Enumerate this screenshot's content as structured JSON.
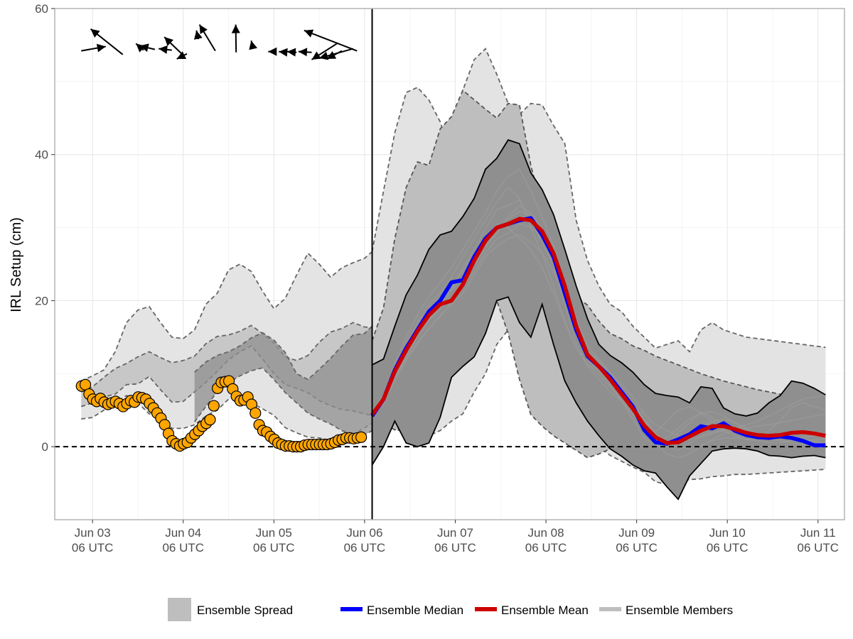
{
  "chart_data": {
    "type": "line",
    "title": "",
    "xlabel": "",
    "ylabel": "IRL Setup (cm)",
    "ylim": [
      -10,
      60
    ],
    "xlim": [
      "Jun 02 20 UTC",
      "Jun 11 11 UTC"
    ],
    "y_ticks": [
      "0",
      "20",
      "40",
      "60"
    ],
    "y_tick_values": [
      0,
      20,
      40,
      60
    ],
    "x_ticks": [
      {
        "line1": "Jun 03",
        "line2": "06 UTC"
      },
      {
        "line1": "Jun 04",
        "line2": "06 UTC"
      },
      {
        "line1": "Jun 05",
        "line2": "06 UTC"
      },
      {
        "line1": "Jun 06",
        "line2": "06 UTC"
      },
      {
        "line1": "Jun 07",
        "line2": "06 UTC"
      },
      {
        "line1": "Jun 08",
        "line2": "06 UTC"
      },
      {
        "line1": "Jun 09",
        "line2": "06 UTC"
      },
      {
        "line1": "Jun 10",
        "line2": "06 UTC"
      },
      {
        "line1": "Jun 11",
        "line2": "06 UTC"
      }
    ],
    "x_tick_hours": [
      6,
      30,
      54,
      78,
      102,
      126,
      150,
      174,
      198
    ],
    "x_unit": "hours after Jun 03 00 UTC",
    "grid": true,
    "forecast_start_hour": 80,
    "zero_reference_line": 0,
    "colors": {
      "observed_fill": "#FFA500",
      "median": "#0000FF",
      "mean": "#CC0000",
      "members": "#999999",
      "spread_outer": "#E3E3E3",
      "spread_mid": "#BEBEBE",
      "spread_inner": "#8F8F8F"
    },
    "legend": {
      "position": "bottom",
      "spread_label": "Ensemble Spread",
      "median_label": "Ensemble Median",
      "mean_label": "Ensemble Mean",
      "members_label": "Ensemble Members"
    },
    "past_spread_bands": [
      {
        "x": [
          3,
          6,
          9,
          12,
          15,
          18,
          21,
          24,
          27,
          30,
          33,
          36,
          39,
          42,
          45,
          48,
          51,
          54,
          57,
          60,
          63,
          66,
          69,
          72,
          75,
          78,
          80
        ],
        "lower": [
          3.8,
          4,
          5,
          6,
          7,
          6,
          4.5,
          4,
          2.5,
          2.5,
          3,
          4.2,
          5,
          6.5,
          7,
          6,
          5.2,
          4.3,
          2.6,
          1.9,
          1.3,
          1.2,
          0.9,
          1.1,
          1.7,
          2.6,
          3.2
        ],
        "upper": [
          9,
          9.7,
          10.5,
          13,
          17,
          18.7,
          19.2,
          17,
          15,
          14.8,
          16,
          19.5,
          21,
          24.2,
          25,
          24,
          21.3,
          18.9,
          20.3,
          23.5,
          26.5,
          25,
          23.2,
          24.5,
          25.2,
          25.8,
          26.7
        ],
        "level": "outer"
      },
      {
        "x": [
          3,
          6,
          9,
          12,
          15,
          18,
          21,
          24,
          27,
          30,
          33,
          36,
          39,
          42,
          45,
          48,
          51,
          54,
          57,
          60,
          63,
          66,
          69,
          72,
          75,
          78,
          80
        ],
        "lower": [
          5.5,
          6,
          6.8,
          7.2,
          8.5,
          8.6,
          9.6,
          7.8,
          6.1,
          6.2,
          7.5,
          8.8,
          10.3,
          11.9,
          13,
          13.8,
          12,
          10,
          8.5,
          8,
          7.4,
          6.3,
          5.6,
          5.1,
          4.9,
          4.5,
          4.3
        ],
        "upper": [
          7.5,
          8.2,
          9.5,
          10.7,
          11.4,
          12.3,
          13,
          12.2,
          11.5,
          11.8,
          12.4,
          14.1,
          15.1,
          15.3,
          15.8,
          16.6,
          15.5,
          14.2,
          12.3,
          11.8,
          12.5,
          14.3,
          15.7,
          16.2,
          17,
          16.4,
          16.3
        ],
        "level": "mid"
      },
      {
        "x": [
          33,
          36,
          39,
          42,
          45,
          48,
          51,
          54,
          57,
          60,
          63,
          66,
          69,
          72,
          75,
          78,
          80
        ],
        "lower": [
          3.4,
          5.5,
          7.5,
          8.8,
          9.7,
          10.4,
          10.8,
          9.2,
          7.4,
          6,
          4.6,
          3.8,
          3.1,
          2.2,
          1.7,
          1.6,
          2.2
        ],
        "upper": [
          10.2,
          11.6,
          12.5,
          13,
          13.8,
          14.9,
          15.6,
          14.6,
          12.9,
          10,
          9.2,
          10.6,
          12.1,
          13.8,
          15.3,
          15.5,
          16.5
        ],
        "level": "inner"
      }
    ],
    "observed": {
      "x": [
        3.1,
        4.1,
        5.1,
        6.1,
        7.1,
        8.1,
        9.1,
        10.1,
        11.1,
        12.1,
        13.1,
        14.1,
        15.1,
        16.1,
        17.1,
        18.1,
        19.1,
        20.1,
        21.1,
        22.1,
        23.1,
        24.1,
        25.1,
        26.1,
        27.1,
        28.1,
        29.1,
        30.1,
        31.1,
        32.1,
        33.1,
        34.1,
        35.1,
        36.1,
        37.1,
        38.1,
        39.1,
        40.1,
        41.1,
        42.1,
        43.1,
        44.1,
        45.1,
        46.1,
        47.1,
        48.1,
        49.1,
        50.1,
        51.1,
        52.1,
        53.1,
        54.1,
        55.1,
        56.1,
        57.1,
        58.1,
        59.1,
        60.1,
        61.1,
        62.1,
        63.1,
        64.1,
        65.1,
        66.1,
        67.1,
        68.1,
        69.1,
        70.1,
        71.1,
        72.1,
        73.1,
        74.1,
        75.1,
        76.1,
        77.1
      ],
      "y": [
        8.3,
        8.5,
        7.2,
        6.5,
        6.2,
        6.6,
        6.1,
        5.8,
        6.0,
        6.2,
        5.9,
        5.5,
        5.9,
        6.3,
        6.1,
        6.8,
        6.7,
        6.5,
        5.9,
        5.3,
        4.6,
        3.9,
        3.0,
        1.8,
        0.8,
        0.4,
        0.1,
        0.4,
        0.6,
        1.2,
        1.7,
        2.2,
        2.8,
        3.2,
        3.7,
        5.6,
        8.0,
        8.8,
        8.9,
        9.0,
        7.9,
        6.9,
        6.3,
        6.4,
        6.8,
        5.8,
        4.6,
        3.0,
        2.2,
        2.0,
        1.4,
        1.0,
        0.5,
        0.3,
        0.1,
        0.1,
        0.0,
        0.0,
        0.0,
        0.2,
        0.3,
        0.3,
        0.3,
        0.3,
        0.3,
        0.3,
        0.4,
        0.6,
        0.9,
        1.0,
        1.2,
        1.2,
        1.1,
        1.2,
        1.3
      ]
    },
    "wind_arrows": [
      {
        "x": 3,
        "y": 54.2,
        "to_x": 9.5,
        "to_y": 54.8
      },
      {
        "x": 14,
        "y": 53.7,
        "to_x": 5.5,
        "to_y": 57.2
      },
      {
        "x": 19.5,
        "y": 54.3,
        "to_x": 17.5,
        "to_y": 55.2
      },
      {
        "x": 22.5,
        "y": 54.4,
        "to_x": 18.5,
        "to_y": 54.9
      },
      {
        "x": 27,
        "y": 54.3,
        "to_x": 23.5,
        "to_y": 54.5
      },
      {
        "x": 30,
        "y": 53.6,
        "to_x": 25,
        "to_y": 56.1
      },
      {
        "x": 31,
        "y": 53.8,
        "to_x": 28.3,
        "to_y": 53.1
      },
      {
        "x": 34,
        "y": 55.8,
        "to_x": 33.5,
        "to_y": 57.0
      },
      {
        "x": 38.5,
        "y": 54.2,
        "to_x": 34.3,
        "to_y": 57.8
      },
      {
        "x": 44,
        "y": 54.0,
        "to_x": 43.9,
        "to_y": 57.8
      },
      {
        "x": 48.5,
        "y": 54.5,
        "to_x": 48,
        "to_y": 55.6
      },
      {
        "x": 54.5,
        "y": 54.1,
        "to_x": 52.5,
        "to_y": 54.1
      },
      {
        "x": 57.5,
        "y": 54.0,
        "to_x": 55.3,
        "to_y": 54.1
      },
      {
        "x": 60,
        "y": 54.0,
        "to_x": 57.5,
        "to_y": 54.1
      },
      {
        "x": 64,
        "y": 54.0,
        "to_x": 60.5,
        "to_y": 54.1
      },
      {
        "x": 72,
        "y": 54.2,
        "to_x": 68,
        "to_y": 53.1
      },
      {
        "x": 75,
        "y": 54.5,
        "to_x": 66,
        "to_y": 53.2
      },
      {
        "x": 71,
        "y": 55.3,
        "to_x": 64,
        "to_y": 53.0
      },
      {
        "x": 76,
        "y": 54.2,
        "to_x": 62,
        "to_y": 57.0
      }
    ],
    "forecast": {
      "x": [
        80,
        83,
        86,
        89,
        92,
        95,
        98,
        101,
        104,
        107,
        110,
        113,
        116,
        119,
        122,
        125,
        128,
        131,
        134,
        137,
        140,
        143,
        146,
        149,
        152,
        155,
        158,
        161,
        164,
        167,
        170,
        173,
        176,
        179,
        182,
        185,
        188,
        191,
        194,
        197,
        200
      ],
      "outer_band": {
        "lower": [
          4,
          3.5,
          2.5,
          1.8,
          1.3,
          1.5,
          2.2,
          3.5,
          4.5,
          7.5,
          10,
          14,
          16,
          19,
          17.5,
          13,
          8,
          5,
          3.2,
          1.5,
          0,
          -1.2,
          -2,
          -2.8,
          -3.5,
          -4.8,
          -5.2,
          -4.8,
          -4.5,
          -4.4,
          -4.1,
          -4,
          -3.8,
          -3.8,
          -3.7,
          -3.6,
          -3.5,
          -3.4,
          -3.3,
          -3.2,
          -3.1
        ],
        "upper": [
          26.7,
          35,
          43,
          48.5,
          49.2,
          47.5,
          44.5,
          40,
          48.8,
          53,
          54.5,
          51,
          47,
          45.5,
          47,
          46.8,
          44,
          41.5,
          31,
          25.5,
          22,
          19.5,
          18.5,
          16.5,
          15,
          13.5,
          14,
          14.5,
          13,
          16,
          17,
          16,
          15.5,
          15,
          14.8,
          14.6,
          14.4,
          14.2,
          14,
          13.8,
          13.6
        ]
      },
      "mid_band": {
        "lower": [
          3.3,
          3.2,
          2.3,
          2.8,
          3.6,
          7,
          10,
          12.5,
          13.8,
          17,
          24,
          20,
          15.5,
          9.2,
          4.4,
          2.8,
          1.5,
          0.5,
          -0.5,
          -1.5,
          -1,
          -0.3,
          0,
          0.2,
          0.4,
          0.6,
          0.8,
          0.9,
          1,
          1.1,
          1.2,
          1.3,
          1.4,
          1.5,
          1.6,
          1.7,
          1.8,
          1.9,
          2,
          2.1,
          2.2
        ],
        "upper": [
          14.5,
          19,
          28.5,
          35.5,
          39,
          38.5,
          43.5,
          45.2,
          48.8,
          47.5,
          46.2,
          45,
          47,
          46.8,
          38.5,
          32.5,
          25.8,
          24.5,
          20.5,
          19.4,
          17.2,
          15.5,
          14.8,
          13.8,
          13.2,
          12.4,
          11.8,
          11.2,
          10.6,
          10,
          9.5,
          9,
          8.6,
          8.2,
          7.8,
          7.5,
          7.2,
          7,
          6.8,
          6.6,
          6.4
        ]
      },
      "inner_band": {
        "lower": [
          -2.5,
          0,
          3.5,
          0.5,
          0,
          0.5,
          4,
          9.5,
          11,
          12.3,
          15.5,
          20,
          20.5,
          17,
          15,
          19.5,
          14,
          9,
          6,
          3.5,
          1.5,
          -0.3,
          -1.3,
          -2.5,
          -3.3,
          -3.6,
          -5.5,
          -7.2,
          -4,
          -2.3,
          -0.6,
          -0.3,
          -0.2,
          -0.3,
          -0.6,
          -1.2,
          -1.3,
          -1.5,
          -1.3,
          -1.2,
          -1.5
        ],
        "upper": [
          11.2,
          12,
          16.5,
          20.8,
          23.5,
          27,
          29,
          29.5,
          31.5,
          34,
          38,
          39.5,
          42,
          41.5,
          37.5,
          35.2,
          31.8,
          27,
          22,
          17.5,
          14,
          12.5,
          11.5,
          10.2,
          8.5,
          7.3,
          7,
          6.8,
          6,
          8.2,
          8,
          5.3,
          4.5,
          4.2,
          4.6,
          6,
          7,
          9,
          8.7,
          8,
          7.1
        ]
      },
      "median": [
        4.2,
        6.5,
        10.5,
        13.5,
        16,
        18.5,
        20,
        22.5,
        22.8,
        26,
        28.5,
        30,
        30.5,
        31,
        31.3,
        29,
        26,
        21,
        16,
        12.4,
        11,
        9.5,
        7.5,
        5.5,
        2.3,
        0.6,
        0.4,
        1,
        1.7,
        2.8,
        2.5,
        3.2,
        2.2,
        1.6,
        1.3,
        1.2,
        1.4,
        1.2,
        0.8,
        0.2,
        0.2
      ],
      "mean": [
        4.4,
        6.5,
        10.3,
        13.2,
        15.8,
        18,
        19.5,
        20,
        22.2,
        25.5,
        28.2,
        30,
        30.5,
        31.2,
        31,
        29.5,
        26.5,
        22,
        16.5,
        12.6,
        11,
        9.2,
        7.2,
        5.2,
        2.9,
        1.3,
        0.5,
        0.6,
        1.4,
        2.2,
        2.8,
        2.8,
        2.4,
        1.9,
        1.6,
        1.5,
        1.6,
        1.9,
        2,
        1.8,
        1.5
      ],
      "members": [
        [
          4,
          6,
          9.8,
          12.5,
          15.2,
          17.5,
          19,
          21.5,
          24.5,
          27,
          29.8,
          32.5,
          33,
          33.8,
          31,
          28,
          24.8,
          19.5,
          14.2,
          11,
          9.2,
          7.5,
          6.2,
          4.5,
          2.8,
          2,
          3.5,
          5,
          5.5,
          4.6,
          3.5,
          2.2,
          1.5,
          1,
          1.2,
          2.2,
          3.5,
          5.4,
          6,
          5.5,
          5
        ],
        [
          4.5,
          7,
          11,
          14.2,
          17,
          19.5,
          21,
          23.2,
          26,
          28.5,
          31,
          33.5,
          35.5,
          34,
          30,
          26.5,
          22,
          17.2,
          13.5,
          11.2,
          10.5,
          8.5,
          6.2,
          3.8,
          1.2,
          0.2,
          0,
          2,
          3.2,
          4.8,
          4,
          3,
          2.5,
          2,
          1.8,
          1.6,
          1.5,
          1.3,
          1,
          0.8,
          0.5
        ],
        [
          4.2,
          6,
          9.5,
          12,
          14.3,
          16.2,
          18,
          19.5,
          21,
          23.5,
          26,
          27.5,
          28.5,
          29,
          28,
          26.5,
          24,
          20.5,
          16.5,
          13.2,
          11.5,
          10,
          8,
          6,
          3.5,
          1.5,
          0,
          -0.5,
          0.5,
          1.5,
          2,
          2.3,
          2.5,
          2.2,
          1.8,
          1.6,
          1.5,
          1.2,
          1,
          0.6,
          0.3
        ],
        [
          3.8,
          6.5,
          10.8,
          14,
          16.5,
          19,
          20.5,
          22,
          24,
          26.5,
          28.8,
          30.5,
          30,
          28.5,
          27,
          24.5,
          21,
          17,
          13.5,
          11.3,
          9.8,
          8.2,
          6.5,
          4.5,
          2.2,
          0.5,
          -1,
          -1.5,
          -1,
          0,
          1,
          1.8,
          2.3,
          2.5,
          2.8,
          3,
          3.3,
          3.6,
          3.9,
          4.2,
          4.5
        ],
        [
          4.6,
          7.2,
          11.5,
          15,
          18,
          20.5,
          22.5,
          24.5,
          27,
          29.5,
          32,
          35,
          37,
          38,
          35,
          31.5,
          27.5,
          22.5,
          17.5,
          13.8,
          12,
          10.2,
          8.5,
          6.8,
          4.5,
          3,
          2.2,
          1.5,
          1,
          1.3,
          1.8,
          2.2,
          2.5,
          3,
          3.5,
          4.2,
          5,
          5.8,
          6.5,
          6.8,
          7
        ],
        [
          4.1,
          5.8,
          9,
          11.8,
          14,
          16.2,
          17.8,
          19.8,
          22,
          24,
          26.5,
          28.5,
          29.2,
          30.5,
          30,
          28.8,
          26,
          21,
          15.8,
          12,
          10.3,
          8.8,
          7,
          5,
          3,
          1.2,
          0.3,
          0.8,
          1.8,
          2.8,
          3.4,
          3.8,
          3.4,
          2.5,
          1.8,
          1.2,
          0.8,
          0.5,
          0.3,
          0.1,
          0
        ],
        [
          4.3,
          6.8,
          10.3,
          13.8,
          16.2,
          18.8,
          20.2,
          21.5,
          23,
          25.5,
          27.5,
          29.2,
          31.5,
          33,
          32,
          29.8,
          26.5,
          22.5,
          17,
          13.2,
          11.8,
          10,
          8,
          6,
          3.8,
          1.8,
          0.5,
          0,
          -0.3,
          0.2,
          0.8,
          1.2,
          1.2,
          1,
          0.8,
          0.6,
          0.5,
          0.8,
          1.2,
          1.5,
          1.8
        ],
        [
          4,
          6.2,
          9.3,
          12.3,
          15,
          17.3,
          18.8,
          20.3,
          22.2,
          24.8,
          27.2,
          29.8,
          31.2,
          32.2,
          31.8,
          29,
          25.5,
          20.5,
          15.5,
          12.2,
          10.8,
          9,
          7,
          4.8,
          2.5,
          0.8,
          1.2,
          2.5,
          3.8,
          4.5,
          4.8,
          4.2,
          3.2,
          2.2,
          1.5,
          1,
          0.8,
          0.8,
          0.9,
          1,
          1.1
        ]
      ]
    }
  }
}
